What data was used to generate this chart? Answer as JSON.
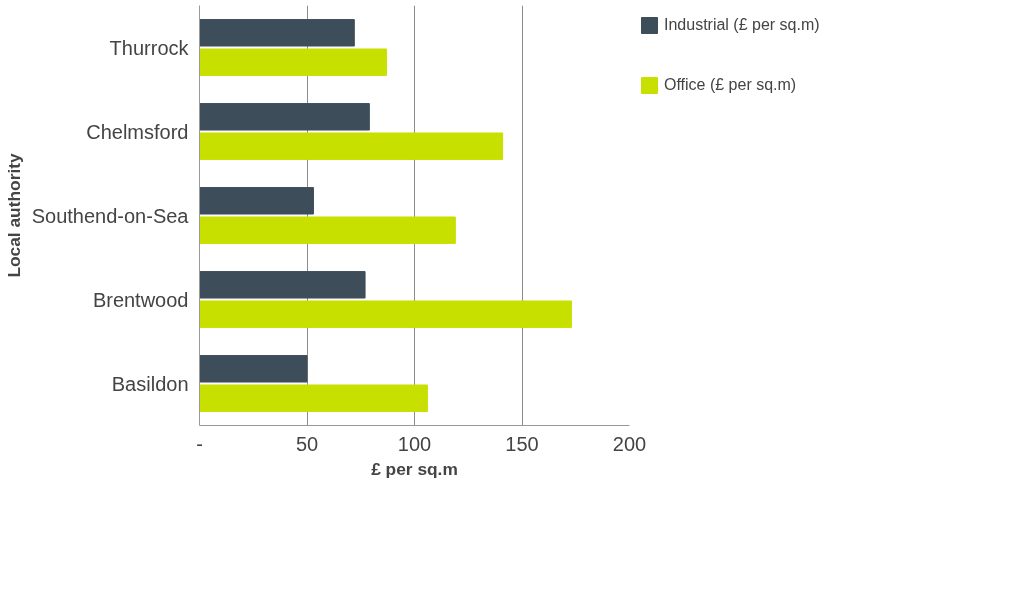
{
  "chart_data": {
    "type": "bar",
    "orientation": "horizontal",
    "xlabel": "£ per sq.m",
    "ylabel": "Local authority",
    "categories": [
      "Thurrock",
      "Chelmsford",
      "Southend-on-Sea",
      "Brentwood",
      "Basildon"
    ],
    "series": [
      {
        "name": "Industrial (£ per sq.m)",
        "color": "#3e4d5a",
        "values": [
          72,
          79,
          53,
          77,
          50
        ]
      },
      {
        "name": "Office (£ per sq.m)",
        "color": "#c8e000",
        "values": [
          87,
          141,
          119,
          173,
          106
        ]
      }
    ],
    "xlim": [
      0,
      200
    ],
    "xticks": [
      {
        "value": 0,
        "label": "-"
      },
      50,
      100,
      150,
      200
    ],
    "grid": "x",
    "legend": "right"
  }
}
